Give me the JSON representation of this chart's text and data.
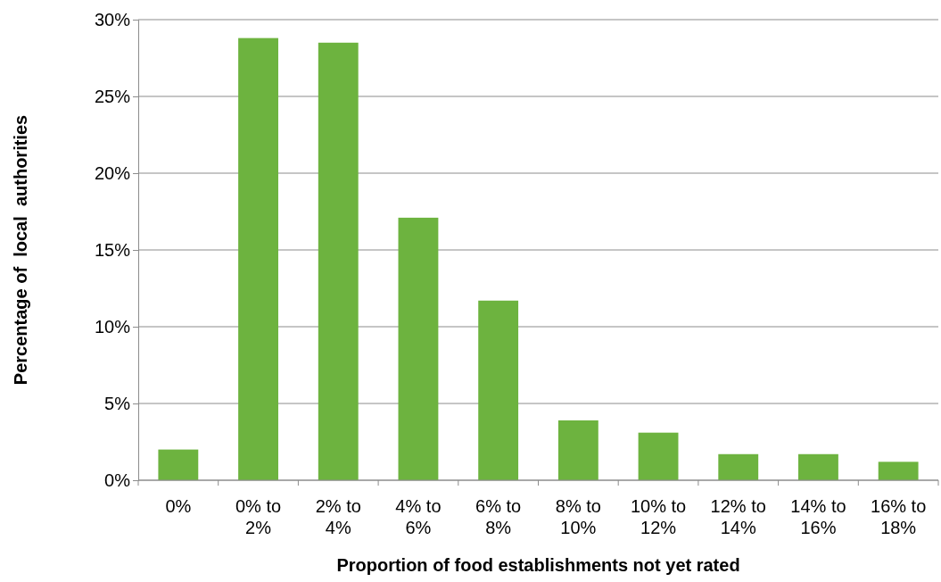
{
  "chart_data": {
    "type": "bar",
    "xlabel": "Proportion of food establishments not yet rated",
    "ylabel": "Percentage of  local  authorities",
    "categories": [
      "0%",
      "0% to 2%",
      "2% to 4%",
      "4% to 6%",
      "6% to 8%",
      "8% to 10%",
      "10% to 12%",
      "12% to 14%",
      "14% to 16%",
      "16% to 18%"
    ],
    "values": [
      2.0,
      28.8,
      28.5,
      17.1,
      11.7,
      3.9,
      3.1,
      1.7,
      1.7,
      1.2
    ],
    "color": "#6db33f",
    "ylim": [
      0,
      30
    ],
    "yticks": [
      {
        "value": 0,
        "label": "0%"
      },
      {
        "value": 5,
        "label": "5%"
      },
      {
        "value": 10,
        "label": "10%"
      },
      {
        "value": 15,
        "label": "15%"
      },
      {
        "value": 20,
        "label": "20%"
      },
      {
        "value": 25,
        "label": "25%"
      },
      {
        "value": 30,
        "label": "30%"
      }
    ],
    "grid": "y"
  }
}
